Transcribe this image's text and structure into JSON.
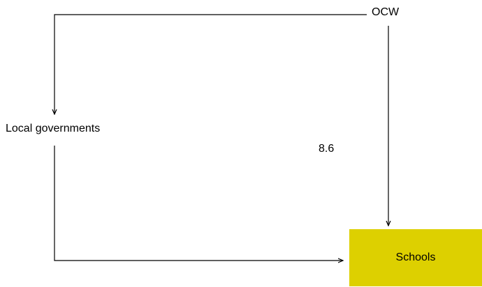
{
  "diagram": {
    "nodes": {
      "ocw": {
        "label": "OCW"
      },
      "local_governments": {
        "label": "Local governments"
      },
      "schools": {
        "label": "Schools"
      }
    },
    "edges": [
      {
        "from": "OCW",
        "to": "Local governments"
      },
      {
        "from": "OCW",
        "to": "Schools",
        "value": "8.6"
      },
      {
        "from": "Local governments",
        "to": "Schools"
      }
    ],
    "flow_value": "8.6"
  },
  "colors": {
    "schools_box": "#ddd000",
    "line": "#000000",
    "background": "#ffffff"
  }
}
